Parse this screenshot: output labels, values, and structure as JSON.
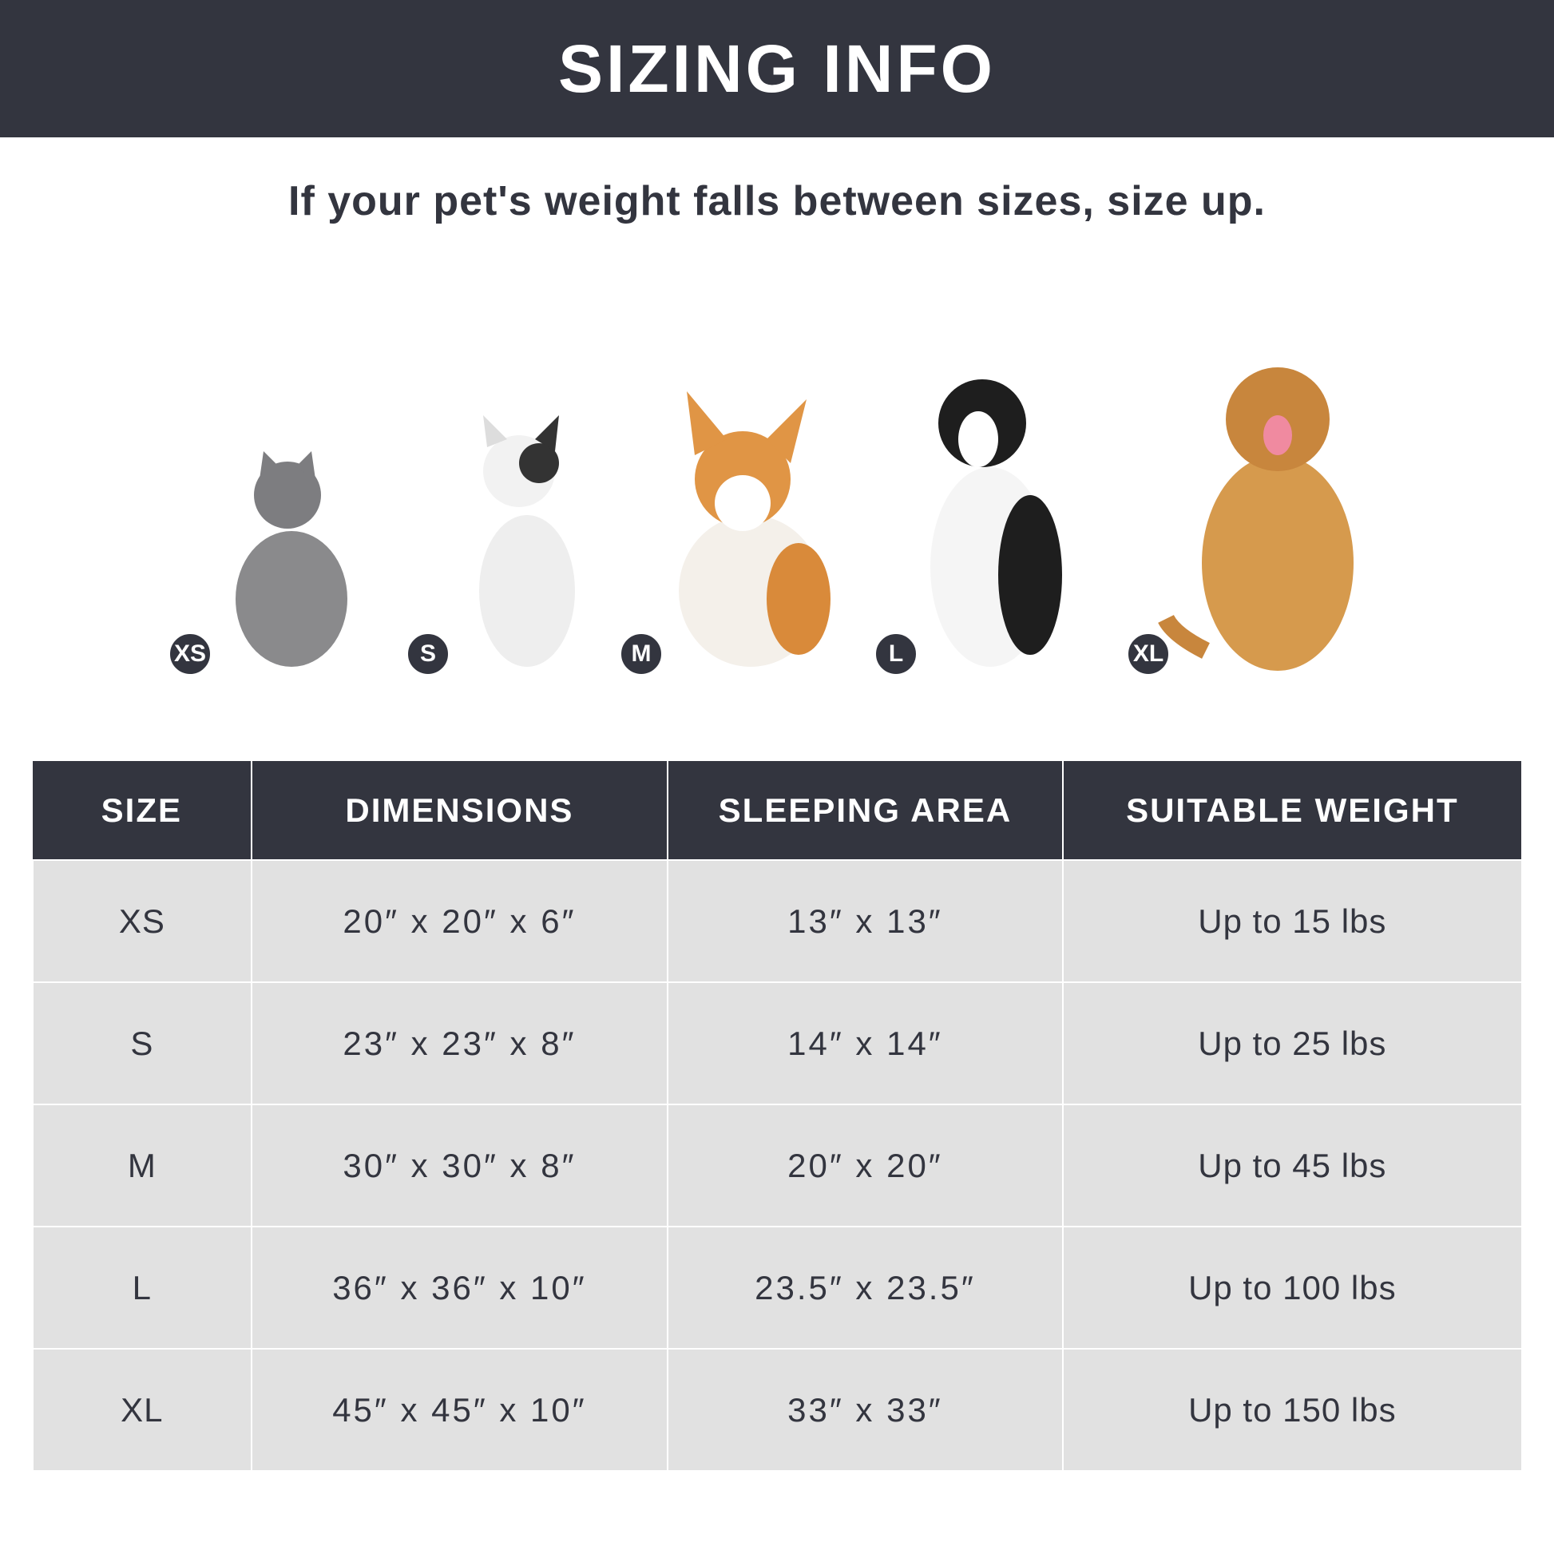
{
  "title": "SIZING INFO",
  "subtitle": "If your pet's weight falls between sizes, size up.",
  "pets": [
    {
      "badge": "XS",
      "animal": "gray cat"
    },
    {
      "badge": "S",
      "animal": "french bulldog"
    },
    {
      "badge": "M",
      "animal": "corgi"
    },
    {
      "badge": "L",
      "animal": "border collie"
    },
    {
      "badge": "XL",
      "animal": "golden retriever"
    }
  ],
  "table": {
    "headers": [
      "SIZE",
      "DIMENSIONS",
      "SLEEPING AREA",
      "SUITABLE WEIGHT"
    ],
    "rows": [
      [
        "XS",
        "20″ x 20″ x 6″",
        "13″ x 13″",
        "Up to 15 lbs"
      ],
      [
        "S",
        "23″ x 23″ x 8″",
        "14″ x 14″",
        "Up to 25 lbs"
      ],
      [
        "M",
        "30″ x 30″ x 8″",
        "20″ x 20″",
        "Up to 45 lbs"
      ],
      [
        "L",
        "36″ x 36″ x 10″",
        "23.5″ x 23.5″",
        "Up to 100 lbs"
      ],
      [
        "XL",
        "45″ x 45″ x 10″",
        "33″ x 33″",
        "Up to 150 lbs"
      ]
    ]
  },
  "colors": {
    "dark": "#33353f",
    "row": "#e1e1e1"
  }
}
